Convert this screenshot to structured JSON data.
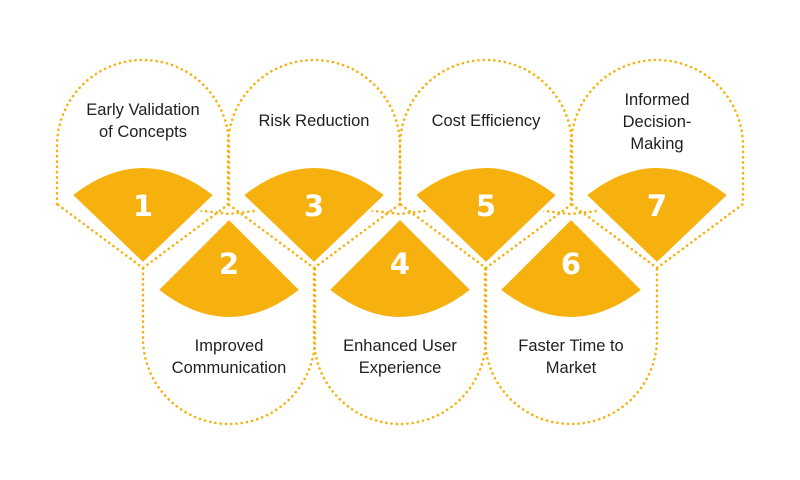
{
  "colors": {
    "accent": "#F6B10F",
    "outline": "#F6B10F",
    "text": "#1f1f1f",
    "number": "#ffffff"
  },
  "items": [
    {
      "number": "1",
      "lines": [
        "Early Validation",
        "of Concepts"
      ]
    },
    {
      "number": "2",
      "lines": [
        "Improved",
        "Communication"
      ]
    },
    {
      "number": "3",
      "lines": [
        "Risk Reduction"
      ]
    },
    {
      "number": "4",
      "lines": [
        "Enhanced User",
        "Experience"
      ]
    },
    {
      "number": "5",
      "lines": [
        "Cost Efficiency"
      ]
    },
    {
      "number": "6",
      "lines": [
        "Faster Time to",
        "Market"
      ]
    },
    {
      "number": "7",
      "lines": [
        "Informed",
        "Decision-",
        "Making"
      ]
    }
  ]
}
